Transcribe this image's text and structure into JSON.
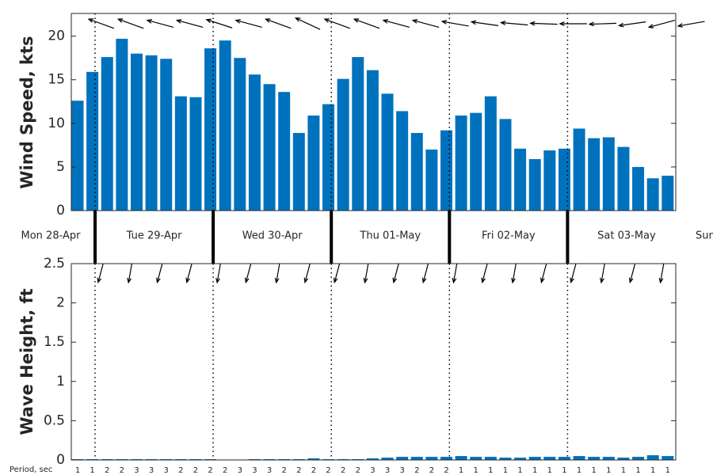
{
  "chart_data": [
    {
      "type": "bar",
      "y_label": "Wind Speed, kts",
      "color": "#0072bd",
      "values": [
        12.6,
        15.9,
        17.6,
        19.7,
        18.0,
        17.8,
        17.4,
        13.1,
        13.0,
        18.6,
        19.5,
        17.5,
        15.6,
        14.5,
        13.6,
        8.9,
        10.9,
        12.2,
        15.1,
        17.6,
        16.1,
        13.4,
        11.4,
        8.9,
        7.0,
        9.2,
        10.9,
        11.2,
        13.1,
        10.5,
        7.1,
        5.9,
        6.9,
        7.1,
        9.4,
        8.3,
        8.4,
        7.3,
        5.0,
        3.7,
        4.0
      ],
      "direction_arrows": [
        200,
        200,
        195,
        195,
        198,
        195,
        200,
        205,
        200,
        200,
        195,
        195,
        190,
        188,
        185,
        182,
        180,
        178,
        172,
        165,
        170
      ],
      "ylim": [
        0,
        22.6
      ],
      "yticks": [
        0,
        5,
        10,
        15,
        20
      ],
      "grid": false,
      "days": [
        "Mon 28-Apr",
        "Tue 29-Apr",
        "Wed 30-Apr",
        "Thu 01-May",
        "Fri 02-May",
        "Sat 03-May",
        "Sun"
      ]
    },
    {
      "type": "bar",
      "y_label": "Wave Height, ft",
      "color": "#0072bd",
      "values": [
        0.01,
        0.01,
        0.01,
        0.01,
        0.01,
        0.01,
        0.01,
        0.01,
        0.01,
        0.01,
        0,
        0,
        0.01,
        0.01,
        0.01,
        0.01,
        0.02,
        0.01,
        0.01,
        0.01,
        0.02,
        0.03,
        0.04,
        0.04,
        0.04,
        0.04,
        0.05,
        0.04,
        0.04,
        0.03,
        0.03,
        0.04,
        0.04,
        0.04,
        0.05,
        0.04,
        0.04,
        0.03,
        0.04,
        0.06,
        0.05
      ],
      "direction_arrows": [
        105,
        100,
        105,
        105,
        100,
        105,
        100,
        105,
        105,
        100,
        105,
        105,
        100,
        105,
        100,
        105,
        105,
        100,
        105,
        100
      ],
      "ylim": [
        0,
        2.5
      ],
      "yticks": [
        0,
        0.5,
        1,
        1.5,
        2,
        2.5
      ],
      "grid": false,
      "period_label": "Period, sec",
      "periods": [
        1,
        1,
        2,
        2,
        3,
        3,
        3,
        2,
        2,
        2,
        2,
        3,
        3,
        3,
        2,
        2,
        2,
        2,
        2,
        2,
        3,
        3,
        3,
        2,
        2,
        2,
        1,
        1,
        1,
        1,
        1,
        1,
        1,
        1,
        1,
        1,
        1,
        1,
        1,
        1,
        1
      ]
    }
  ]
}
